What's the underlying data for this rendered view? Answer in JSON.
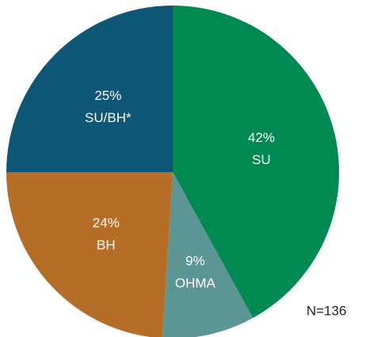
{
  "chart_data": {
    "type": "pie",
    "categories": [
      "SU",
      "OHMA",
      "BH",
      "SU/BH*"
    ],
    "values": [
      42,
      9,
      24,
      25
    ],
    "value_labels": [
      "42%",
      "9%",
      "24%",
      "25%"
    ],
    "colors": [
      "#008a52",
      "#5b9594",
      "#b56d27",
      "#0e5676"
    ],
    "annotation": "N=136"
  }
}
